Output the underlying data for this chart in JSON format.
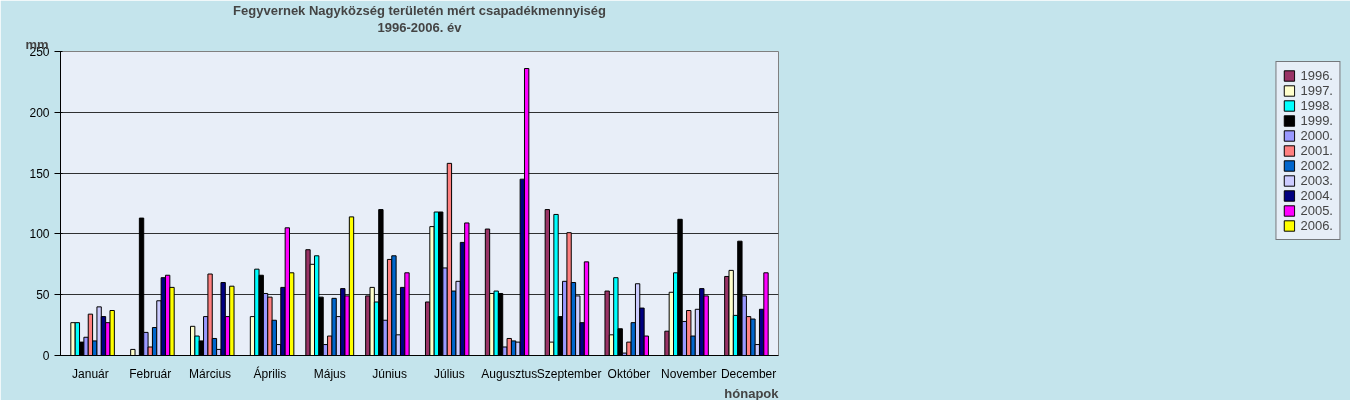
{
  "chart_data": {
    "type": "bar",
    "title": "Fegyvernek Nagyközség területén mért csapadékmennyiség",
    "subtitle": "1996-2006. év",
    "ylabel": "mm",
    "xlabel": "hónapok",
    "categories": [
      "Január",
      "Február",
      "Március",
      "Április",
      "Május",
      "Június",
      "Július",
      "Augusztus",
      "Szeptember",
      "Október",
      "November",
      "December"
    ],
    "series": [
      {
        "name": "1996.",
        "color": "#993366",
        "values": [
          null,
          null,
          null,
          null,
          87,
          49,
          44,
          104,
          120,
          53,
          20,
          65
        ]
      },
      {
        "name": "1997.",
        "color": "#ffffcc",
        "values": [
          27,
          5,
          24,
          32,
          75,
          56,
          106,
          51,
          11,
          17,
          52,
          70
        ]
      },
      {
        "name": "1998.",
        "color": "#00ffff",
        "values": [
          27,
          null,
          16,
          71,
          82,
          44,
          118,
          53,
          116,
          64,
          68,
          33
        ]
      },
      {
        "name": "1999.",
        "color": "#000000",
        "values": [
          11,
          113,
          12,
          66,
          48,
          120,
          118,
          51,
          32,
          22,
          112,
          94
        ]
      },
      {
        "name": "2000.",
        "color": "#9999ff",
        "values": [
          15,
          19,
          32,
          51,
          9,
          29,
          72,
          7,
          61,
          2,
          28,
          49
        ]
      },
      {
        "name": "2001.",
        "color": "#ff8080",
        "values": [
          34,
          7,
          67,
          48,
          16,
          79,
          158,
          14,
          101,
          11,
          37,
          32
        ]
      },
      {
        "name": "2002.",
        "color": "#0066cc",
        "values": [
          12,
          23,
          14,
          29,
          47,
          82,
          53,
          12,
          60,
          27,
          16,
          30
        ]
      },
      {
        "name": "2003.",
        "color": "#ccccff",
        "values": [
          40,
          45,
          5,
          9,
          32,
          17,
          61,
          11,
          49,
          59,
          38,
          9
        ]
      },
      {
        "name": "2004.",
        "color": "#000080",
        "values": [
          32,
          64,
          60,
          56,
          55,
          56,
          93,
          145,
          27,
          39,
          55,
          38
        ]
      },
      {
        "name": "2005.",
        "color": "#ff00ff",
        "values": [
          27,
          66,
          32,
          105,
          49,
          68,
          109,
          236,
          77,
          16,
          49,
          68
        ]
      },
      {
        "name": "2006.",
        "color": "#ffff00",
        "values": [
          37,
          56,
          57,
          68,
          114,
          null,
          null,
          null,
          null,
          null,
          null,
          null
        ]
      }
    ],
    "ylim": [
      0,
      250
    ],
    "yticks": [
      0,
      50,
      100,
      150,
      200,
      250
    ],
    "grid": "y",
    "legend": "right"
  }
}
